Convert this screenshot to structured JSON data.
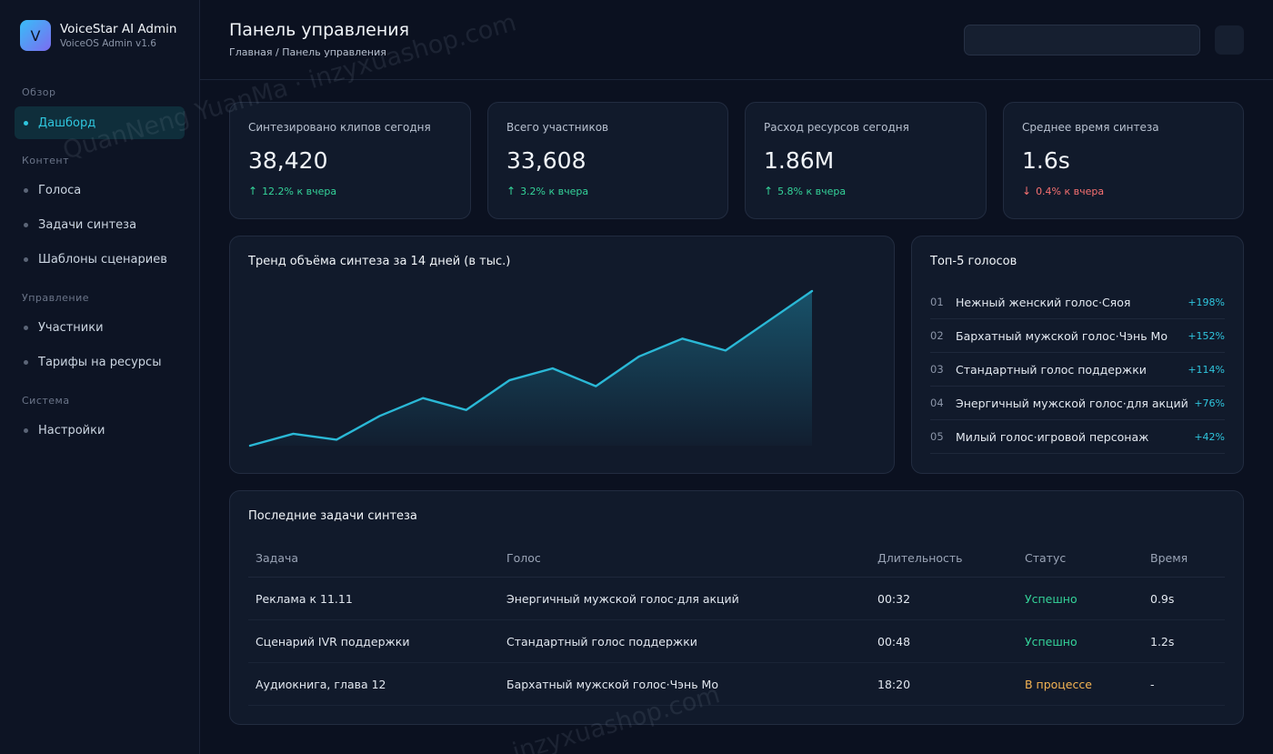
{
  "brand": {
    "logo_letter": "V",
    "name": "VoiceStar AI Admin",
    "version": "VoiceOS Admin v1.6"
  },
  "sidebar": {
    "groups": [
      {
        "title": "Обзор",
        "items": [
          {
            "label": "Дашборд",
            "active": true
          }
        ]
      },
      {
        "title": "Контент",
        "items": [
          {
            "label": "Голоса"
          },
          {
            "label": "Задачи синтеза"
          },
          {
            "label": "Шаблоны сценариев"
          }
        ]
      },
      {
        "title": "Управление",
        "items": [
          {
            "label": "Участники"
          },
          {
            "label": "Тарифы на ресурсы"
          }
        ]
      },
      {
        "title": "Система",
        "items": [
          {
            "label": "Настройки"
          }
        ]
      }
    ]
  },
  "header": {
    "title": "Панель управления",
    "breadcrumb": "Главная / Панель управления"
  },
  "stats": [
    {
      "label": "Синтезировано клипов сегодня",
      "value": "38,420",
      "change": "12.2% к вчера",
      "direction": "up",
      "arrow": "↑"
    },
    {
      "label": "Всего участников",
      "value": "33,608",
      "change": "3.2% к вчера",
      "direction": "up",
      "arrow": "↑"
    },
    {
      "label": "Расход ресурсов сегодня",
      "value": "1.86M",
      "change": "5.8% к вчера",
      "direction": "up",
      "arrow": "↑"
    },
    {
      "label": "Среднее время синтеза",
      "value": "1.6s",
      "change": "0.4% к вчера",
      "direction": "down",
      "arrow": "↓"
    }
  ],
  "trend": {
    "title": "Тренд объёма синтеза за 14 дней (в тыс.)"
  },
  "chart_data": {
    "type": "area",
    "x": [
      1,
      2,
      3,
      4,
      5,
      6,
      7,
      8,
      9,
      10,
      11,
      12,
      13,
      14
    ],
    "values": [
      0,
      8,
      4,
      20,
      32,
      24,
      44,
      52,
      40,
      60,
      72,
      64,
      84,
      104
    ],
    "ylim": [
      0,
      104
    ],
    "grid": false,
    "line_color": "#2ab8d6"
  },
  "top_voices": {
    "title": "Топ-5 голосов",
    "items": [
      {
        "rank": "01",
        "name": "Нежный женский голос·Сяоя",
        "growth": "+198%"
      },
      {
        "rank": "02",
        "name": "Бархатный мужской голос·Чэнь Мо",
        "growth": "+152%"
      },
      {
        "rank": "03",
        "name": "Стандартный голос поддержки",
        "growth": "+114%"
      },
      {
        "rank": "04",
        "name": "Энергичный мужской голос·для акций",
        "growth": "+76%"
      },
      {
        "rank": "05",
        "name": "Милый голос·игровой персонаж",
        "growth": "+42%"
      }
    ]
  },
  "recent_tasks": {
    "title": "Последние задачи синтеза",
    "columns": [
      "Задача",
      "Голос",
      "Длительность",
      "Статус",
      "Время"
    ],
    "rows": [
      {
        "task": "Реклама к 11.11",
        "voice": "Энергичный мужской голос·для акций",
        "duration": "00:32",
        "status": "Успешно",
        "status_kind": "success",
        "time": "0.9s"
      },
      {
        "task": "Сценарий IVR поддержки",
        "voice": "Стандартный голос поддержки",
        "duration": "00:48",
        "status": "Успешно",
        "status_kind": "success",
        "time": "1.2s"
      },
      {
        "task": "Аудиокнига, глава 12",
        "voice": "Бархатный мужской голос·Чэнь Мо",
        "duration": "18:20",
        "status": "В процессе",
        "status_kind": "progress",
        "time": "-"
      }
    ]
  },
  "watermarks": [
    "QuanNeng YuanMa · inzyxuashop.com",
    "inzyxuashop.com"
  ]
}
